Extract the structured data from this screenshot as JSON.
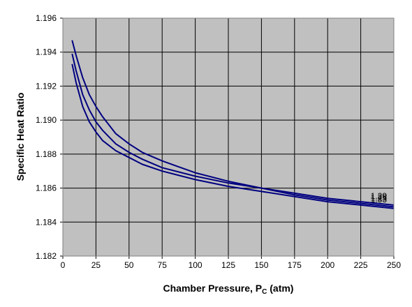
{
  "chart_data": {
    "type": "line",
    "title": "",
    "xlabel": "Chamber Pressure, P",
    "xlabel_sub": "C",
    "xlabel_unit": " (atm)",
    "ylabel": "Specific Heat Ratio",
    "xlim": [
      0,
      250
    ],
    "ylim": [
      1.182,
      1.196
    ],
    "xticks": [
      0,
      25,
      50,
      75,
      100,
      125,
      150,
      175,
      200,
      225,
      250
    ],
    "yticks": [
      "1.182",
      "1.184",
      "1.186",
      "1.188",
      "1.190",
      "1.192",
      "1.194",
      "1.196"
    ],
    "grid": true,
    "legend": "none",
    "colors": {
      "plot_bg": "#c0c0c0",
      "line": "#000080",
      "grid": "#000000"
    },
    "series": [
      {
        "label": "1.25",
        "x": [
          7,
          10,
          15,
          20,
          25,
          30,
          40,
          50,
          60,
          75,
          100,
          125,
          150,
          175,
          200,
          225,
          250
        ],
        "y": [
          1.1947,
          1.1938,
          1.1925,
          1.1915,
          1.1908,
          1.1902,
          1.1892,
          1.1886,
          1.1881,
          1.1876,
          1.1869,
          1.1864,
          1.186,
          1.1856,
          1.1853,
          1.1851,
          1.1849
        ]
      },
      {
        "label": "1.29",
        "x": [
          7,
          10,
          15,
          20,
          25,
          30,
          40,
          50,
          60,
          75,
          100,
          125,
          150,
          175,
          200,
          225,
          250
        ],
        "y": [
          1.1939,
          1.1929,
          1.1915,
          1.1906,
          1.1899,
          1.1894,
          1.1886,
          1.1881,
          1.1877,
          1.1872,
          1.1867,
          1.1863,
          1.186,
          1.1857,
          1.1854,
          1.1852,
          1.185
        ]
      },
      {
        "label": "1.33",
        "x": [
          7,
          10,
          15,
          20,
          25,
          30,
          40,
          50,
          60,
          75,
          100,
          125,
          150,
          175,
          200,
          225,
          250
        ],
        "y": [
          1.1933,
          1.1922,
          1.1908,
          1.1899,
          1.1893,
          1.1888,
          1.1882,
          1.1878,
          1.1874,
          1.187,
          1.1865,
          1.1861,
          1.1858,
          1.1855,
          1.1852,
          1.185,
          1.1848
        ]
      }
    ]
  }
}
